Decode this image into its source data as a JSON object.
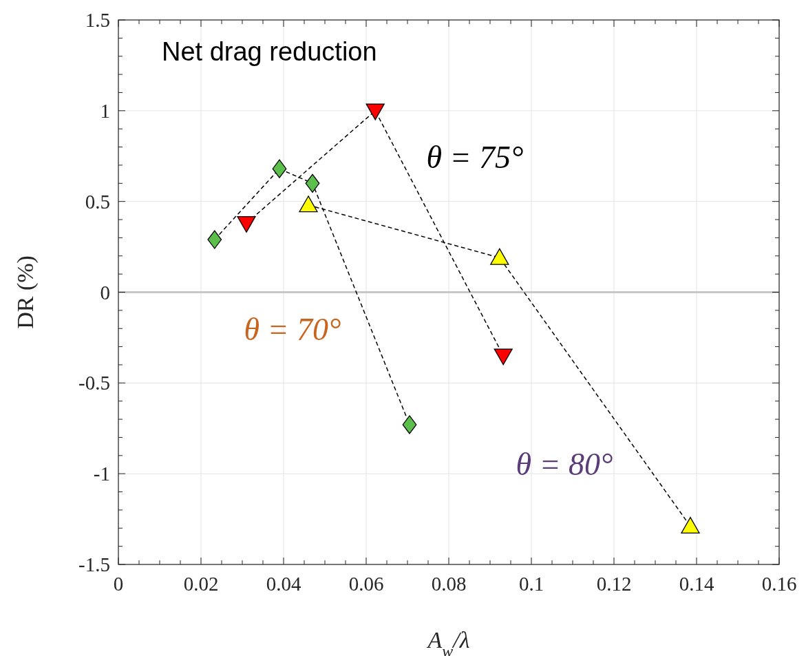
{
  "chart_data": {
    "type": "line",
    "title": "Net drag reduction",
    "xlabel": "A$_{w}$/λ",
    "ylabel": "DR (%)",
    "xlim": [
      0,
      0.16
    ],
    "xticks": [
      0,
      0.02,
      0.04,
      0.06,
      0.08,
      0.1,
      0.12,
      0.14,
      0.16
    ],
    "ylim": [
      -1.5,
      1.5
    ],
    "yticks": [
      -1.5,
      -1,
      -0.5,
      0,
      0.5,
      1,
      1.5
    ],
    "grid": true,
    "line_style": "dashed",
    "ref_lines": [
      {
        "axis": "y",
        "value": 0,
        "color": "#c8c8c8"
      }
    ],
    "annotations": [
      "θ = 75°",
      "θ = 70°",
      "θ = 80°"
    ],
    "series": [
      {
        "color": "#5cbf4c",
        "marker": "diamond",
        "x": [
          0.0233,
          0.039,
          0.047,
          0.0705
        ],
        "values": [
          0.29,
          0.68,
          0.6,
          -0.73
        ]
      },
      {
        "color": "#ff0000",
        "marker": "triangle-down",
        "x": [
          0.031,
          0.0622,
          0.0932
        ],
        "values": [
          0.38,
          1.0,
          -0.35
        ]
      },
      {
        "color": "#ffff00",
        "marker": "triangle",
        "x": [
          0.046,
          0.0923,
          0.1385
        ],
        "values": [
          0.48,
          0.19,
          -1.29
        ]
      }
    ]
  }
}
